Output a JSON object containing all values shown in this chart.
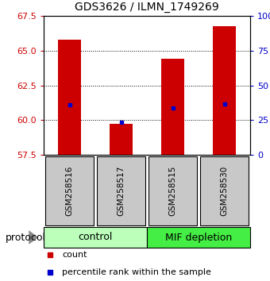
{
  "title": "GDS3626 / ILMN_1749269",
  "samples": [
    "GSM258516",
    "GSM258517",
    "GSM258515",
    "GSM258530"
  ],
  "bar_values": [
    65.8,
    59.72,
    64.4,
    66.75
  ],
  "percentile_values": [
    61.1,
    59.82,
    60.9,
    61.15
  ],
  "y_min": 57.5,
  "y_max": 67.5,
  "y_ticks": [
    57.5,
    60.0,
    62.5,
    65.0,
    67.5
  ],
  "right_y_ticks": [
    0,
    25,
    50,
    75,
    100
  ],
  "bar_color": "#cc0000",
  "percentile_color": "#0000cc",
  "bar_width": 0.45,
  "groups": [
    {
      "label": "control",
      "samples": [
        0,
        1
      ],
      "color": "#bbffbb"
    },
    {
      "label": "MIF depletion",
      "samples": [
        2,
        3
      ],
      "color": "#44ee44"
    }
  ],
  "protocol_label": "protocol",
  "legend_count_label": "count",
  "legend_percentile_label": "percentile rank within the sample",
  "bg_color": "#ffffff",
  "plot_bg": "#ffffff",
  "sample_box_color": "#c8c8c8",
  "title_fontsize": 10,
  "tick_fontsize": 8,
  "sample_fontsize": 7.5,
  "group_fontsize": 9,
  "legend_fontsize": 8
}
